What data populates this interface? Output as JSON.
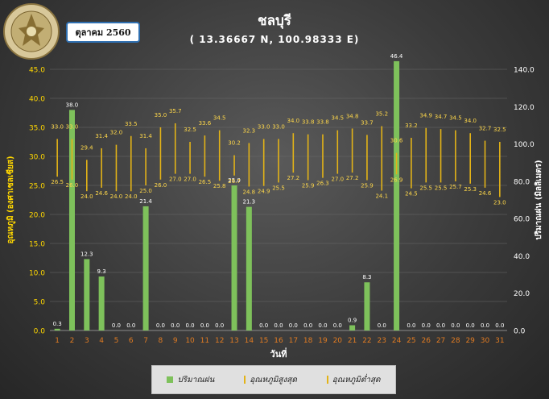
{
  "header": {
    "title": "ชลบุรี",
    "coordinates": "( 13.36667 N, 100.98333 E)",
    "month_label": "ตุลาคม 2560"
  },
  "colors": {
    "rain_bar": "#7ec15b",
    "temp_line": "#e3b317",
    "day_tick": "#e07b22",
    "left_axis_text": "#ffd700",
    "right_axis_text": "#ffffff",
    "gridline": "#6a6a6a"
  },
  "chart_data": {
    "type": "bar",
    "xlabel": "วันที่",
    "ylabel_left": "อุณหภูมิ (องศาเซลเซียส)",
    "ylabel_right": "ปริมาณฝน (มิลลิเมตร)",
    "categories": [
      "1",
      "2",
      "3",
      "4",
      "5",
      "6",
      "7",
      "8",
      "9",
      "10",
      "11",
      "12",
      "13",
      "14",
      "15",
      "16",
      "17",
      "18",
      "19",
      "20",
      "21",
      "22",
      "23",
      "24",
      "25",
      "26",
      "27",
      "28",
      "29",
      "30",
      "31"
    ],
    "left_axis": {
      "min": 0,
      "max": 45,
      "ticks": [
        "0.0",
        "5.0",
        "10.0",
        "15.0",
        "20.0",
        "25.0",
        "30.0",
        "35.0",
        "40.0",
        "45.0"
      ]
    },
    "right_axis": {
      "min": 0,
      "max": 140,
      "ticks": [
        "0.0",
        "20.0",
        "40.0",
        "60.0",
        "80.0",
        "100.0",
        "120.0",
        "140.0"
      ]
    },
    "grid": true,
    "legend_position": "bottom",
    "series": [
      {
        "name": "ปริมาณฝน",
        "kind": "bar",
        "axis": "left",
        "values": [
          0.3,
          38.0,
          12.3,
          9.3,
          0.0,
          0.0,
          21.4,
          0.0,
          0.0,
          0.0,
          0.0,
          0.0,
          25.0,
          21.3,
          0.0,
          0.0,
          0.0,
          0.0,
          0.0,
          0.0,
          0.9,
          8.3,
          0.0,
          46.4,
          0.0,
          0.0,
          0.0,
          0.0,
          0.0,
          0.0,
          0.0
        ],
        "labels": [
          "0.3",
          "38.0",
          "12.3",
          "9.3",
          "0.0",
          "0.0",
          "21.4",
          "0.0",
          "0.0",
          "0.0",
          "0.0",
          "0.0",
          "25.0",
          "21.3",
          "0.0",
          "0.0",
          "0.0",
          "0.0",
          "0.0",
          "0.0",
          "0.9",
          "8.3",
          "0.0",
          "46.4",
          "0.0",
          "0.0",
          "0.0",
          "0.0",
          "0.0",
          "0.0",
          "0.0"
        ]
      },
      {
        "name": "อุณหภูมิสูงสุด",
        "kind": "range-high",
        "axis": "left",
        "values": [
          33.0,
          33.0,
          29.4,
          31.4,
          32.0,
          33.5,
          31.4,
          35.0,
          35.7,
          32.5,
          33.6,
          34.5,
          30.2,
          32.3,
          33.0,
          33.0,
          34.0,
          33.8,
          33.8,
          34.5,
          34.8,
          33.7,
          35.2,
          30.6,
          33.2,
          34.9,
          34.7,
          34.5,
          34.0,
          32.7,
          32.5
        ],
        "labels": [
          "33.0",
          "33.0",
          "29.4",
          "31.4",
          "32.0",
          "33.5",
          "31.4",
          "35.0",
          "35.7",
          "32.5",
          "33.6",
          "34.5",
          "30.2",
          "32.3",
          "33.0",
          "33.0",
          "34.0",
          "33.8",
          "33.8",
          "34.5",
          "34.8",
          "33.7",
          "35.2",
          "30.6",
          "33.2",
          "34.9",
          "34.7",
          "34.5",
          "34.0",
          "32.7",
          "32.5"
        ]
      },
      {
        "name": "อุณหภูมิต่ำสุด",
        "kind": "range-low",
        "axis": "left",
        "values": [
          26.5,
          26.0,
          24.0,
          24.6,
          24.0,
          24.0,
          25.0,
          26.0,
          27.0,
          27.0,
          26.5,
          25.8,
          26.7,
          24.8,
          24.9,
          25.5,
          27.2,
          25.9,
          26.3,
          27.0,
          27.2,
          25.9,
          24.1,
          26.9,
          24.5,
          25.5,
          25.5,
          25.7,
          25.3,
          24.6,
          23.0
        ],
        "labels": [
          "26.5",
          "26.0",
          "24.0",
          "24.6",
          "24.0",
          "24.0",
          "25.0",
          "26.0",
          "27.0",
          "27.0",
          "26.5",
          "25.8",
          "26.7",
          "24.8",
          "24.9",
          "25.5",
          "27.2",
          "25.9",
          "26.3",
          "27.0",
          "27.2",
          "25.9",
          "24.1",
          "26.9",
          "24.5",
          "25.5",
          "25.5",
          "25.7",
          "25.3",
          "24.6",
          "23.0"
        ]
      }
    ]
  },
  "legend": {
    "rain": "ปริมาณฝน",
    "tmax": "อุณหภูมิสูงสุด",
    "tmin": "อุณหภูมิต่ำสุด"
  }
}
